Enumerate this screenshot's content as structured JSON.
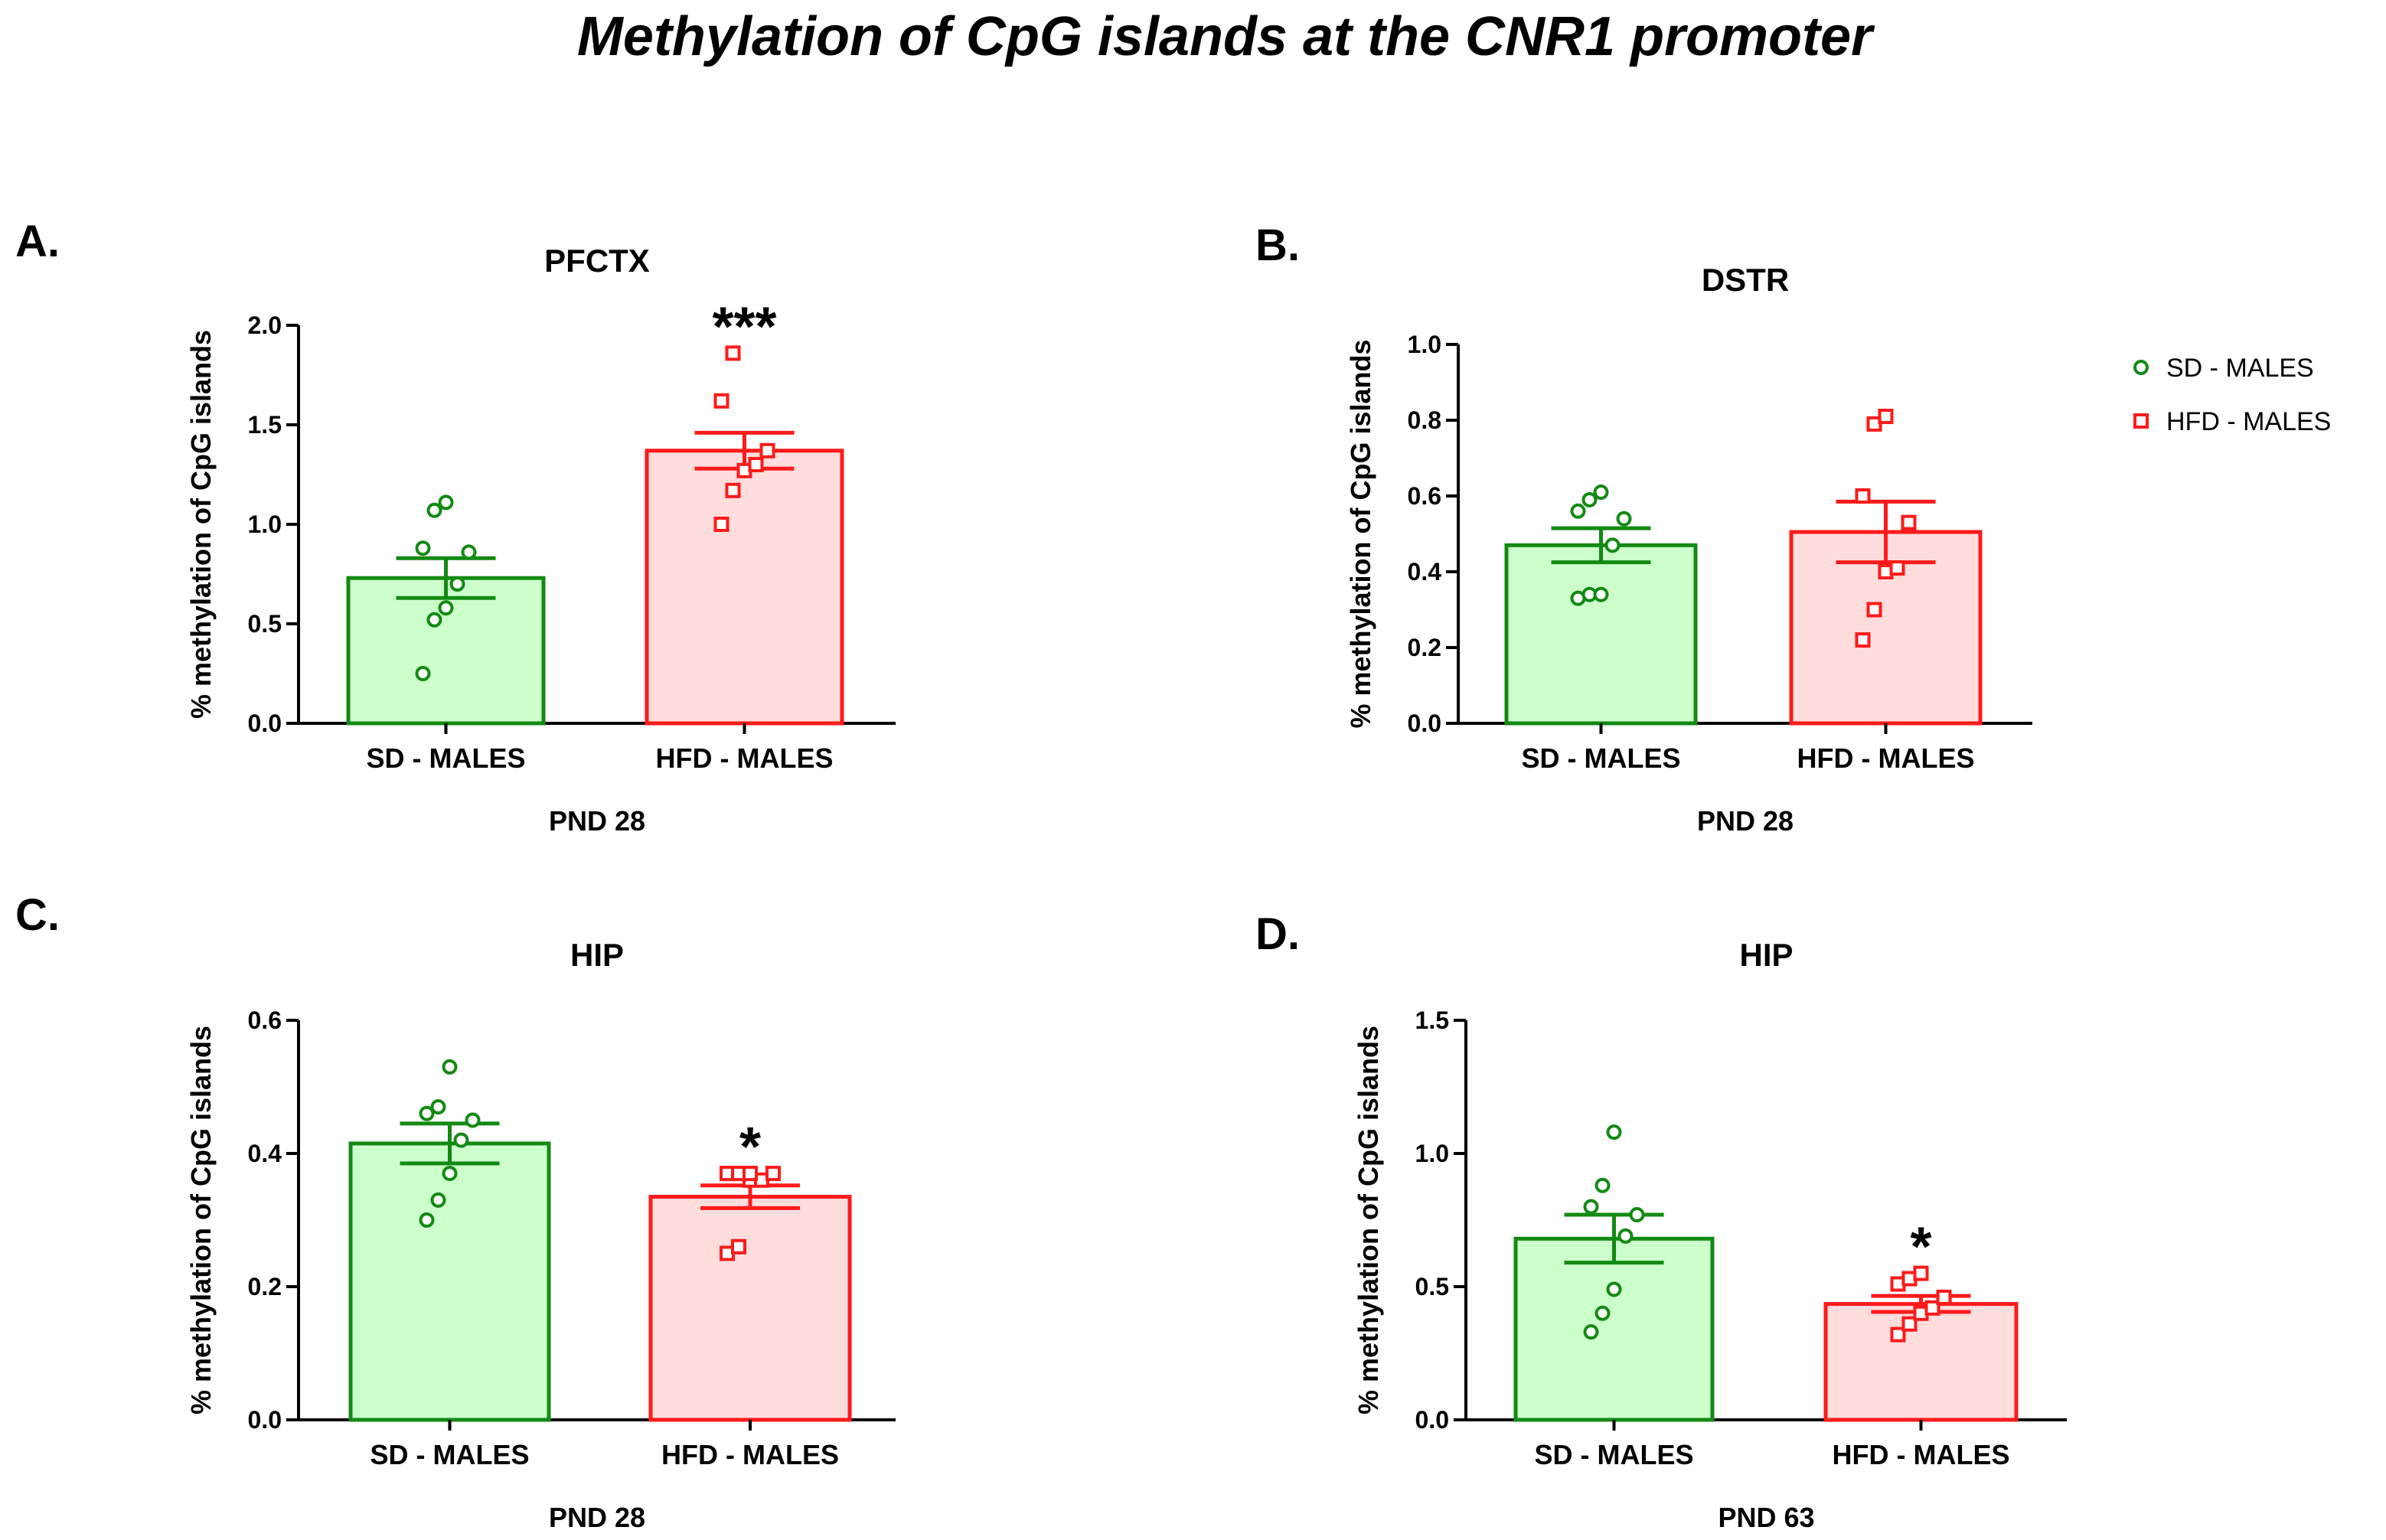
{
  "figure": {
    "title": "Methylation of CpG islands at the CNR1 promoter",
    "colors": {
      "sd_stroke": "#138a13",
      "sd_fill": "#ccffcc",
      "hfd_stroke": "#ff1a1a",
      "hfd_fill": "#ffdddd"
    }
  },
  "legend": {
    "placement": "right",
    "items": [
      {
        "label": "SD - MALES",
        "marker": "circle",
        "color": "#138a13"
      },
      {
        "label": "HFD - MALES",
        "marker": "square",
        "color": "#ff1a1a"
      }
    ]
  },
  "chart_data": [
    {
      "type": "bar",
      "letter": "A.",
      "title": "PFCTX",
      "xlabel": "PND 28",
      "ylabel": "% methylation of CpG islands",
      "ylim": [
        0,
        2.0
      ],
      "yticks": [
        "0.0",
        "0.5",
        "1.0",
        "1.5",
        "2.0"
      ],
      "categories": [
        "SD - MALES",
        "HFD - MALES"
      ],
      "values": [
        0.73,
        1.37
      ],
      "sem": [
        0.1,
        0.09
      ],
      "points": [
        [
          0.25,
          0.52,
          0.58,
          0.7,
          0.86,
          0.88,
          1.07,
          1.11
        ],
        [
          1.0,
          1.17,
          1.27,
          1.3,
          1.37,
          1.62,
          1.86
        ]
      ],
      "significance": [
        "",
        "***"
      ]
    },
    {
      "type": "bar",
      "letter": "B.",
      "title": "DSTR",
      "xlabel": "PND 28",
      "ylabel": "% methylation of CpG islands",
      "ylim": [
        0,
        1.0
      ],
      "yticks": [
        "0.0",
        "0.2",
        "0.4",
        "0.6",
        "0.8",
        "1.0"
      ],
      "categories": [
        "SD - MALES",
        "HFD - MALES"
      ],
      "values": [
        0.47,
        0.505
      ],
      "sem": [
        0.045,
        0.08
      ],
      "points": [
        [
          0.33,
          0.34,
          0.34,
          0.47,
          0.54,
          0.56,
          0.59,
          0.61
        ],
        [
          0.22,
          0.3,
          0.4,
          0.41,
          0.53,
          0.6,
          0.79,
          0.81
        ]
      ],
      "significance": [
        "",
        ""
      ]
    },
    {
      "type": "bar",
      "letter": "C.",
      "title": "HIP",
      "xlabel": "PND 28",
      "ylabel": "% methylation of CpG islands",
      "ylim": [
        0,
        0.6
      ],
      "yticks": [
        "0.0",
        "0.2",
        "0.4",
        "0.6"
      ],
      "categories": [
        "SD - MALES",
        "HFD - MALES"
      ],
      "values": [
        0.415,
        0.335
      ],
      "sem": [
        0.03,
        0.017
      ],
      "points": [
        [
          0.3,
          0.33,
          0.37,
          0.42,
          0.45,
          0.46,
          0.47,
          0.53
        ],
        [
          0.25,
          0.26,
          0.36,
          0.36,
          0.37,
          0.37,
          0.37,
          0.37
        ]
      ],
      "significance": [
        "",
        "*"
      ]
    },
    {
      "type": "bar",
      "letter": "D.",
      "title": "HIP",
      "xlabel": "PND 63",
      "ylabel": "% methylation of CpG islands",
      "ylim": [
        0,
        1.5
      ],
      "yticks": [
        "0.0",
        "0.5",
        "1.0",
        "1.5"
      ],
      "categories": [
        "SD - MALES",
        "HFD - MALES"
      ],
      "values": [
        0.68,
        0.435
      ],
      "sem": [
        0.09,
        0.03
      ],
      "points": [
        [
          0.33,
          0.4,
          0.49,
          0.69,
          0.77,
          0.8,
          0.88,
          1.08
        ],
        [
          0.32,
          0.36,
          0.4,
          0.42,
          0.46,
          0.51,
          0.53,
          0.55
        ]
      ],
      "significance": [
        "",
        "*"
      ]
    }
  ]
}
